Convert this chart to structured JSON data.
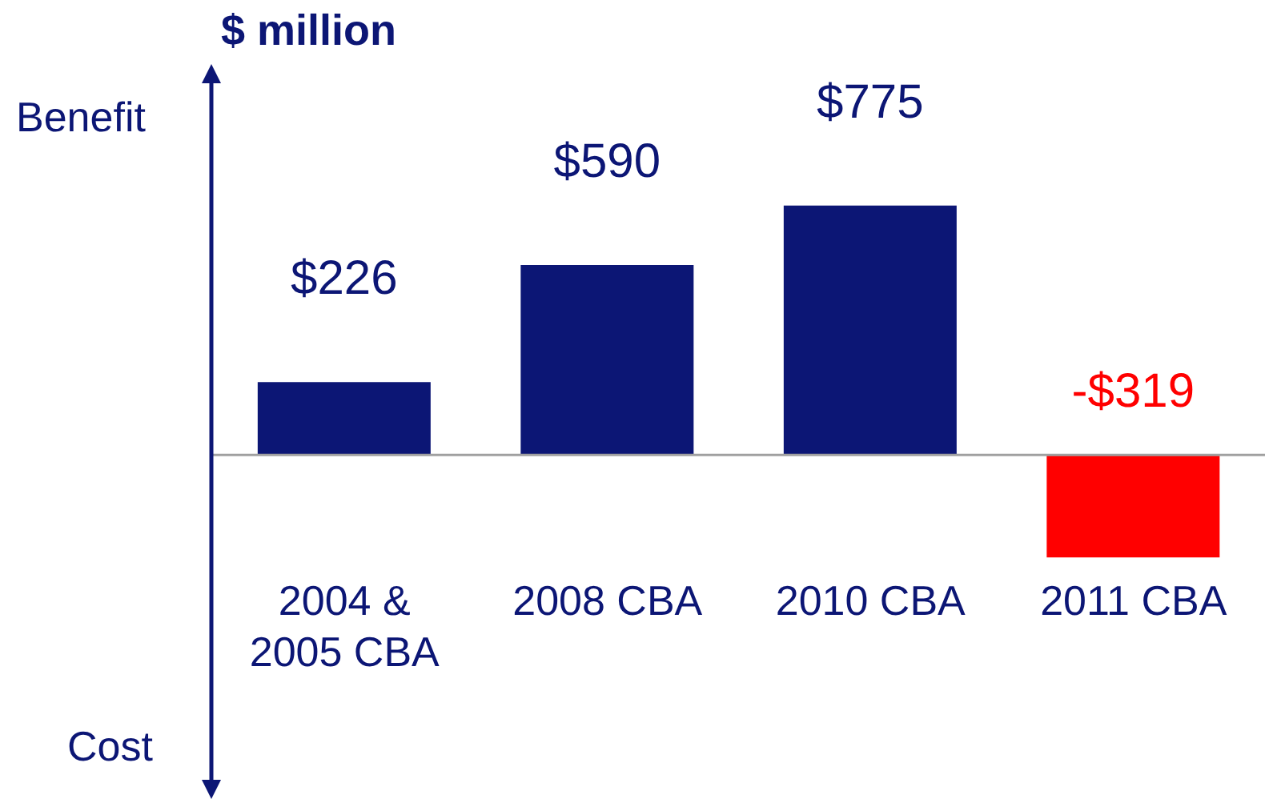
{
  "chart_data": {
    "type": "bar",
    "ylabel": "$ million",
    "categories": [
      "2004 &\n2005 CBA",
      "2008 CBA",
      "2010 CBA",
      "2011 CBA"
    ],
    "values": [
      226,
      590,
      775,
      -319
    ],
    "colors": [
      "#0c1675",
      "#0c1675",
      "#0c1675",
      "#ff0000"
    ],
    "value_labels": [
      "$226",
      "$590",
      "$775",
      "-$319"
    ],
    "ylim": [
      -1050,
      1190
    ],
    "annotations": [
      "Benefit",
      "Cost"
    ]
  }
}
